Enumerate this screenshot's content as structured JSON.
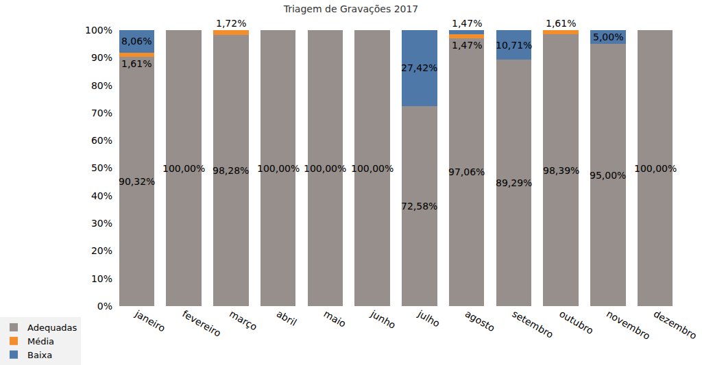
{
  "chart_data": {
    "type": "bar",
    "title": "Triagem de Gravações 2017",
    "stacked": true,
    "data_labels": true,
    "grid": false,
    "legend": "bottom-left",
    "categories": [
      "janeiro",
      "fevereiro",
      "março",
      "abril",
      "maio",
      "junho",
      "julho",
      "agosto",
      "setembro",
      "outubro",
      "novembro",
      "dezembro"
    ],
    "series": [
      {
        "name": "Adequadas",
        "color": "#968f8b",
        "values": [
          90.32,
          100,
          98.28,
          100,
          100,
          100,
          72.58,
          97.06,
          89.29,
          98.39,
          95.0,
          100
        ],
        "value_labels": [
          "90,32%",
          "100,00%",
          "98,28%",
          "100,00%",
          "100,00%",
          "100,00%",
          "72,58%",
          "97,06%",
          "89,29%",
          "98,39%",
          "95,00%",
          "100,00%"
        ]
      },
      {
        "name": "Média",
        "color": "#f28e2b",
        "values": [
          1.61,
          null,
          1.72,
          null,
          null,
          null,
          null,
          1.47,
          null,
          1.61,
          null,
          null
        ],
        "value_labels": [
          "1,61%",
          null,
          "1,72%",
          null,
          null,
          null,
          null,
          "1,47%",
          null,
          "1,61%",
          null,
          null
        ]
      },
      {
        "name": "Baixa",
        "color": "#4d78a8",
        "values": [
          8.06,
          null,
          null,
          null,
          null,
          null,
          27.42,
          1.47,
          10.71,
          null,
          5.0,
          null
        ],
        "value_labels": [
          "8,06%",
          null,
          null,
          null,
          null,
          null,
          "27,42%",
          "1,47%",
          "10,71%",
          null,
          "5,00%",
          null
        ]
      }
    ],
    "ylim": [
      0,
      100
    ],
    "yticks": [
      {
        "value": 0,
        "label": "0%"
      },
      {
        "value": 10,
        "label": "10%"
      },
      {
        "value": 20,
        "label": "20%"
      },
      {
        "value": 30,
        "label": "30%"
      },
      {
        "value": 40,
        "label": "40%"
      },
      {
        "value": 50,
        "label": "50%"
      },
      {
        "value": 60,
        "label": "60%"
      },
      {
        "value": 70,
        "label": "70%"
      },
      {
        "value": 80,
        "label": "80%"
      },
      {
        "value": 90,
        "label": "90%"
      },
      {
        "value": 100,
        "label": "100%"
      }
    ]
  }
}
